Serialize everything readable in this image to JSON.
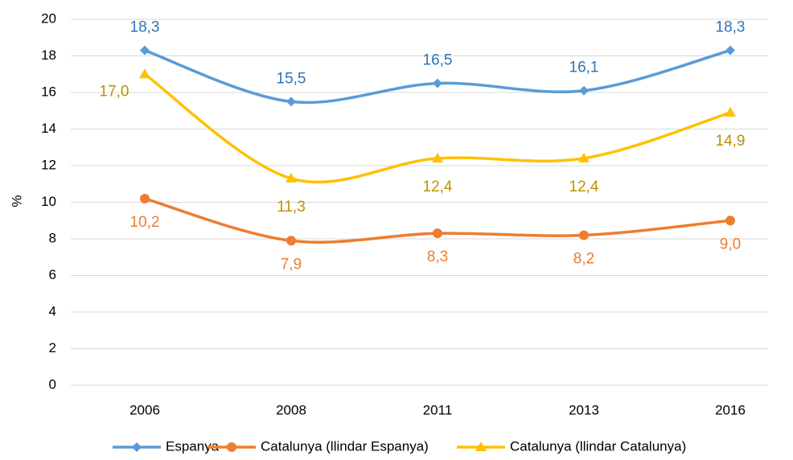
{
  "chart_data": {
    "type": "line",
    "y_label": "%",
    "categories": [
      "2006",
      "2008",
      "2011",
      "2013",
      "2016"
    ],
    "series": [
      {
        "name": "Espanya",
        "color": "#5b9bd5",
        "label_color": "#2e75b6",
        "marker": "diamond",
        "values": [
          18.3,
          15.5,
          16.5,
          16.1,
          18.3
        ],
        "value_labels": [
          "18,3",
          "15,5",
          "16,5",
          "16,1",
          "18,3"
        ]
      },
      {
        "name": "Catalunya (llindar Espanya)",
        "color": "#ed7d31",
        "label_color": "#ed7d31",
        "marker": "circle",
        "values": [
          10.2,
          7.9,
          8.3,
          8.2,
          9.0
        ],
        "value_labels": [
          "10,2",
          "7,9",
          "8,3",
          "8,2",
          "9,0"
        ]
      },
      {
        "name": "Catalunya (llindar Catalunya)",
        "color": "#ffc000",
        "label_color": "#bf9000",
        "marker": "triangle",
        "values": [
          17.0,
          11.3,
          12.4,
          12.4,
          14.9
        ],
        "value_labels": [
          "17,0",
          "11,3",
          "12,4",
          "12,4",
          "14,9"
        ]
      }
    ],
    "ylim": [
      0,
      20
    ],
    "yticks": [
      0,
      2,
      4,
      6,
      8,
      10,
      12,
      14,
      16,
      18,
      20
    ],
    "grid": true,
    "smooth": true,
    "legend": "bottom"
  }
}
